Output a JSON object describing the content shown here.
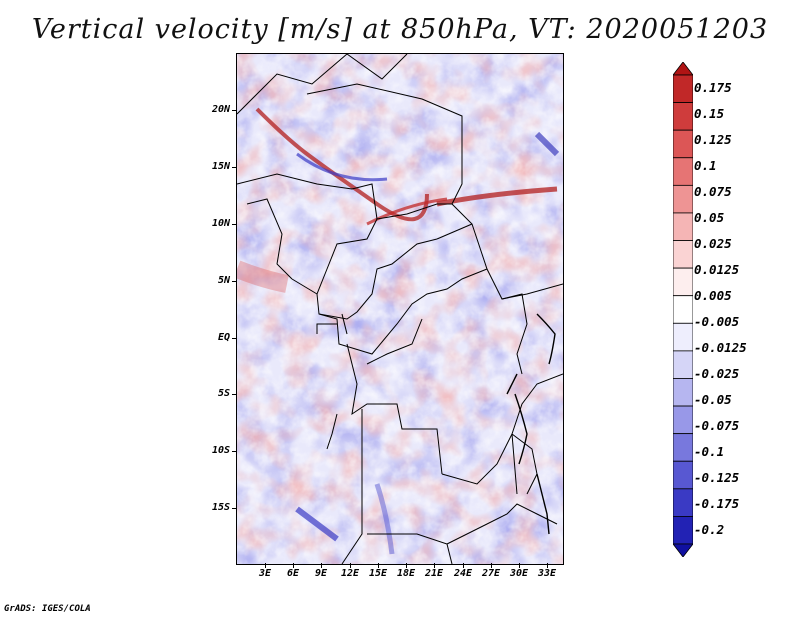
{
  "title": "Vertical velocity [m/s] at 850hPa, VT: 2020051203",
  "credit": "GrADS: IGES/COLA",
  "map": {
    "lat_labels": [
      "20N",
      "15N",
      "10N",
      "5N",
      "EQ",
      "5S",
      "10S",
      "15S"
    ],
    "lon_labels": [
      "3E",
      "6E",
      "9E",
      "12E",
      "15E",
      "18E",
      "21E",
      "24E",
      "27E",
      "30E",
      "33E"
    ],
    "colorbar": {
      "levels": [
        "0.175",
        "0.15",
        "0.125",
        "0.1",
        "0.075",
        "0.05",
        "0.025",
        "0.0125",
        "0.005",
        "-0.005",
        "-0.0125",
        "-0.025",
        "-0.05",
        "-0.075",
        "-0.1",
        "-0.125",
        "-0.175",
        "-0.2"
      ],
      "colors": [
        "#b01414",
        "#c12828",
        "#cf3c3c",
        "#dc5656",
        "#e67474",
        "#ee9494",
        "#f5b5b5",
        "#fad3d3",
        "#fdeeee",
        "#ffffff",
        "#eeeefd",
        "#d5d5f7",
        "#b6b6f0",
        "#9898e8",
        "#7878dd",
        "#5858d2",
        "#3a3ac4",
        "#2222b4",
        "#1010a0"
      ]
    }
  }
}
